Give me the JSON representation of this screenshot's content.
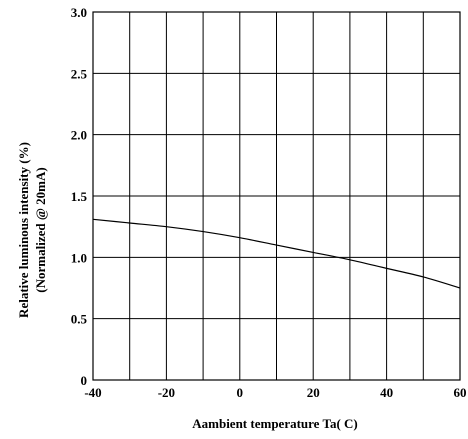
{
  "chart_data": {
    "type": "line",
    "title": "",
    "xlabel": "Aambient temperature Ta( C)",
    "ylabel_line1": "Relative luminous intensity (%)",
    "ylabel_line2": "(Normalized @ 20mA)",
    "xlim": [
      -40,
      60
    ],
    "ylim": [
      0,
      3.0
    ],
    "x_grid_step": 10,
    "y_grid_step": 0.5,
    "x_ticks": [
      -40,
      -20,
      0,
      20,
      40,
      60
    ],
    "x_tick_labels": [
      "-40",
      "-20",
      "0",
      "20",
      "40",
      "60"
    ],
    "y_ticks": [
      0,
      0.5,
      1.0,
      1.5,
      2.0,
      2.5,
      3.0
    ],
    "y_tick_labels": [
      "0",
      "0.5",
      "1.0",
      "1.5",
      "2.0",
      "2.5",
      "3.0"
    ],
    "grid": true,
    "series": [
      {
        "x": [
          -40,
          -30,
          -20,
          -10,
          0,
          10,
          20,
          30,
          40,
          50,
          60
        ],
        "y": [
          1.31,
          1.28,
          1.25,
          1.21,
          1.16,
          1.1,
          1.04,
          0.98,
          0.91,
          0.84,
          0.75
        ]
      }
    ]
  }
}
